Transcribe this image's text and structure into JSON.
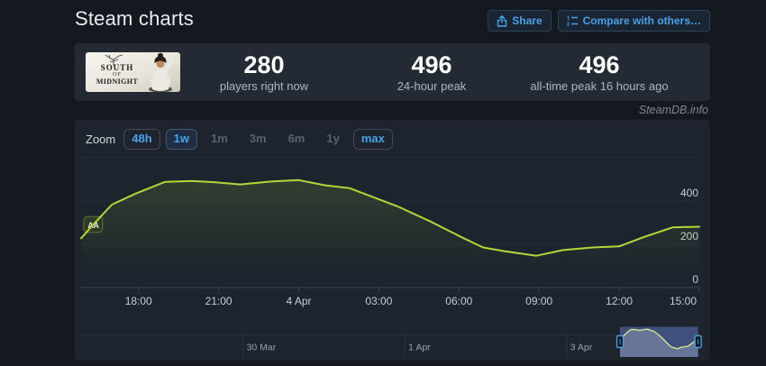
{
  "page": {
    "title": "Steam charts",
    "watermark": "SteamDB.info"
  },
  "header": {
    "share": {
      "label": "Share"
    },
    "compare": {
      "label": "Compare with others…"
    }
  },
  "game": {
    "name": "South of Midnight",
    "logo_line1": "SOUTH",
    "logo_of": "OF",
    "logo_line2": "MIDNIGHT"
  },
  "stats": {
    "current": {
      "value": "280",
      "label": "players right now"
    },
    "peak24": {
      "value": "496",
      "label": "24-hour peak"
    },
    "alltime": {
      "value": "496",
      "label": "all-time peak 16 hours ago"
    }
  },
  "zoom_bar": {
    "label": "Zoom",
    "buttons": [
      {
        "label": "48h",
        "state": "enabled"
      },
      {
        "label": "1w",
        "state": "active"
      },
      {
        "label": "1m",
        "state": "disabled"
      },
      {
        "label": "3m",
        "state": "disabled"
      },
      {
        "label": "6m",
        "state": "disabled"
      },
      {
        "label": "1y",
        "state": "disabled"
      },
      {
        "label": "max",
        "state": "enabled"
      }
    ]
  },
  "chart_data": {
    "type": "line",
    "series_name": "Players",
    "line_color": "#b6d53a",
    "grid_color": "#262e38",
    "axis_color": "#3a434e",
    "tick_label_color": "#c3ccd4",
    "x_axis": {
      "unit": "hours since 3 Apr 00:00",
      "range_hours": [
        15.85,
        39.0
      ],
      "ticks": [
        {
          "t": 18,
          "label": "18:00"
        },
        {
          "t": 21,
          "label": "21:00"
        },
        {
          "t": 24,
          "label": "4 Apr"
        },
        {
          "t": 27,
          "label": "03:00"
        },
        {
          "t": 30,
          "label": "06:00"
        },
        {
          "t": 33,
          "label": "09:00"
        },
        {
          "t": 36,
          "label": "12:00"
        },
        {
          "t": 39,
          "label": "15:00"
        }
      ]
    },
    "y_axis": {
      "range": [
        0,
        620
      ],
      "gridlines": [
        600,
        400,
        200,
        0
      ],
      "labeled_ticks": [
        400,
        200,
        0
      ]
    },
    "points": [
      [
        15.85,
        227
      ],
      [
        16.3,
        290
      ],
      [
        17.0,
        383
      ],
      [
        17.9,
        434
      ],
      [
        19.0,
        488
      ],
      [
        20.0,
        492
      ],
      [
        20.9,
        486
      ],
      [
        21.8,
        476
      ],
      [
        23.0,
        490
      ],
      [
        24.0,
        496
      ],
      [
        25.0,
        472
      ],
      [
        25.9,
        459
      ],
      [
        26.8,
        417
      ],
      [
        27.7,
        375
      ],
      [
        28.9,
        307
      ],
      [
        30.1,
        232
      ],
      [
        30.9,
        185
      ],
      [
        31.7,
        168
      ],
      [
        32.9,
        147
      ],
      [
        33.9,
        173
      ],
      [
        35.0,
        185
      ],
      [
        36.0,
        190
      ],
      [
        36.9,
        232
      ],
      [
        38.0,
        278
      ],
      [
        39.0,
        281
      ]
    ],
    "flag": {
      "label": "AA",
      "t": 16.3,
      "v": 290
    },
    "navigator": {
      "range_days": [
        0,
        7.64
      ],
      "day_zero": "28 Mar",
      "window_days": [
        6.66,
        7.625
      ],
      "ticks": [
        {
          "day": 2,
          "label": "30 Mar"
        },
        {
          "day": 4,
          "label": "1 Apr"
        },
        {
          "day": 6,
          "label": "3 Apr"
        }
      ],
      "y_range": [
        0,
        500
      ],
      "window_color": "#40507c",
      "mini_line_color": "#d3e190"
    }
  }
}
